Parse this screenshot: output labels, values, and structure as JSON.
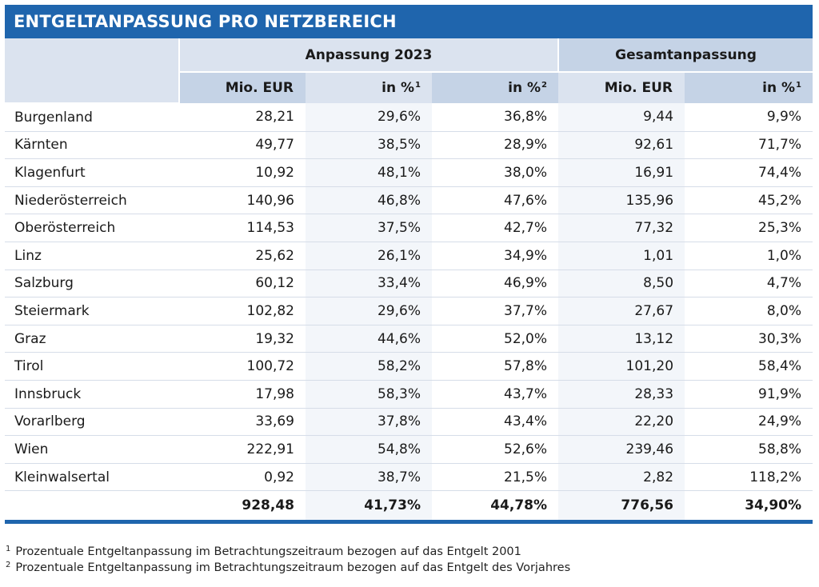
{
  "title": "ENTGELTANPASSUNG PRO NETZBEREICH",
  "chart_data": {
    "type": "table",
    "groups": [
      "Anpassung 2023",
      "Gesamtanpassung"
    ],
    "columns": [
      {
        "label": "Mio. EUR",
        "sup": ""
      },
      {
        "label": "in %",
        "sup": "1"
      },
      {
        "label": "in %",
        "sup": "2"
      },
      {
        "label": "Mio. EUR",
        "sup": ""
      },
      {
        "label": "in %",
        "sup": "1"
      }
    ],
    "rows": [
      {
        "name": "Burgenland",
        "values": [
          "28,21",
          "29,6%",
          "36,8%",
          "9,44",
          "9,9%"
        ]
      },
      {
        "name": "Kärnten",
        "values": [
          "49,77",
          "38,5%",
          "28,9%",
          "92,61",
          "71,7%"
        ]
      },
      {
        "name": "Klagenfurt",
        "values": [
          "10,92",
          "48,1%",
          "38,0%",
          "16,91",
          "74,4%"
        ]
      },
      {
        "name": "Niederösterreich",
        "values": [
          "140,96",
          "46,8%",
          "47,6%",
          "135,96",
          "45,2%"
        ]
      },
      {
        "name": "Oberösterreich",
        "values": [
          "114,53",
          "37,5%",
          "42,7%",
          "77,32",
          "25,3%"
        ]
      },
      {
        "name": "Linz",
        "values": [
          "25,62",
          "26,1%",
          "34,9%",
          "1,01",
          "1,0%"
        ]
      },
      {
        "name": "Salzburg",
        "values": [
          "60,12",
          "33,4%",
          "46,9%",
          "8,50",
          "4,7%"
        ]
      },
      {
        "name": "Steiermark",
        "values": [
          "102,82",
          "29,6%",
          "37,7%",
          "27,67",
          "8,0%"
        ]
      },
      {
        "name": "Graz",
        "values": [
          "19,32",
          "44,6%",
          "52,0%",
          "13,12",
          "30,3%"
        ]
      },
      {
        "name": "Tirol",
        "values": [
          "100,72",
          "58,2%",
          "57,8%",
          "101,20",
          "58,4%"
        ]
      },
      {
        "name": "Innsbruck",
        "values": [
          "17,98",
          "58,3%",
          "43,7%",
          "28,33",
          "91,9%"
        ]
      },
      {
        "name": "Vorarlberg",
        "values": [
          "33,69",
          "37,8%",
          "43,4%",
          "22,20",
          "24,9%"
        ]
      },
      {
        "name": "Wien",
        "values": [
          "222,91",
          "54,8%",
          "52,6%",
          "239,46",
          "58,8%"
        ]
      },
      {
        "name": "Kleinwalsertal",
        "values": [
          "0,92",
          "38,7%",
          "21,5%",
          "2,82",
          "118,2%"
        ]
      }
    ],
    "total": [
      "928,48",
      "41,73%",
      "44,78%",
      "776,56",
      "34,90%"
    ]
  },
  "footnotes": [
    {
      "mark": "1",
      "text": "Prozentuale Entgeltanpassung im Betrachtungszeitraum bezogen auf das Entgelt 2001"
    },
    {
      "mark": "2",
      "text": "Prozentuale Entgeltanpassung im Betrachtungszeitraum bezogen auf das Entgelt des Vorjahres"
    }
  ],
  "colors": {
    "accent": "#1f65ad",
    "header_light": "#dbe3ef",
    "header_mid": "#c5d3e6",
    "row_alt": "#f3f6fa"
  }
}
